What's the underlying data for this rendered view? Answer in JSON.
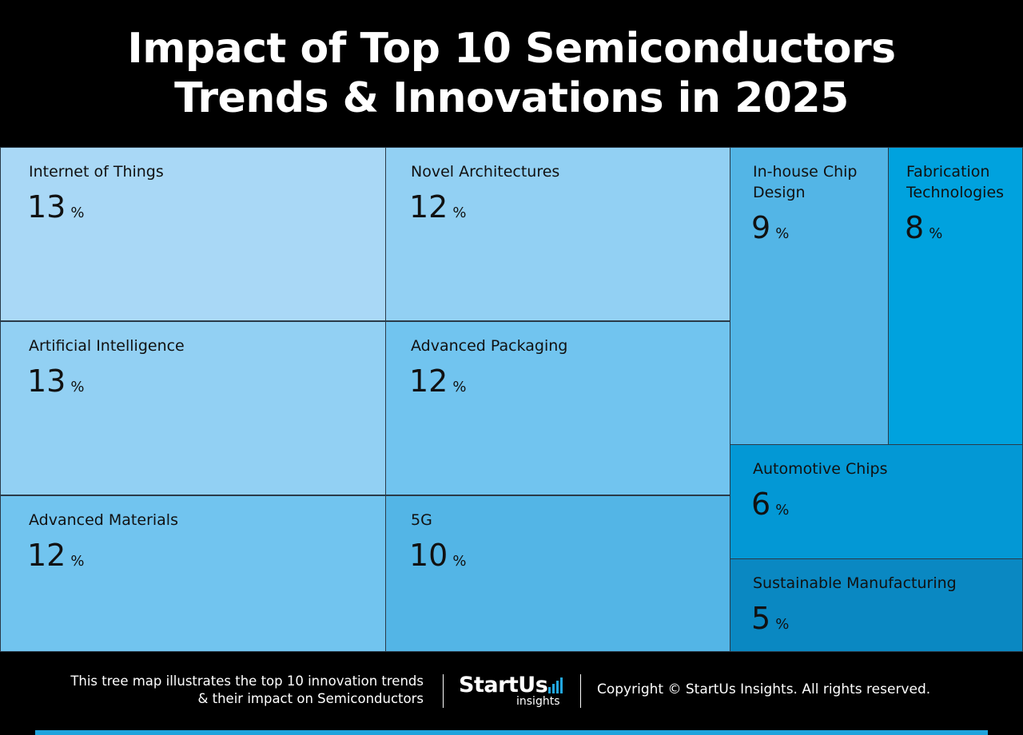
{
  "title_lines": [
    "Impact of Top 10 Semiconductors",
    "Trends & Innovations in 2025"
  ],
  "chart_data": {
    "type": "treemap",
    "unit": "%",
    "items": [
      {
        "label": "Internet of Things",
        "value": 13,
        "color": "#a9d8f6"
      },
      {
        "label": "Artificial Intelligence",
        "value": 13,
        "color": "#92d0f3"
      },
      {
        "label": "Advanced Materials",
        "value": 12,
        "color": "#71c4ef"
      },
      {
        "label": "Novel Architectures",
        "value": 12,
        "color": "#92d0f3"
      },
      {
        "label": "Advanced Packaging",
        "value": 12,
        "color": "#71c4ef"
      },
      {
        "label": "5G",
        "value": 10,
        "color": "#53b5e6"
      },
      {
        "label": "In-house Chip Design",
        "value": 9,
        "color": "#53b5e6"
      },
      {
        "label": "Fabrication Technologies",
        "value": 8,
        "color": "#00a2de"
      },
      {
        "label": "Automotive Chips",
        "value": 6,
        "color": "#0398d5"
      },
      {
        "label": "Sustainable Manufacturing",
        "value": 5,
        "color": "#0a88c2"
      }
    ]
  },
  "footer": {
    "description_lines": [
      "This tree map illustrates the top 10 innovation trends",
      "& their impact on Semiconductors"
    ],
    "logo_brand": "StartUs",
    "logo_sub": "insights",
    "copyright": "Copyright © StartUs Insights. All rights reserved."
  }
}
